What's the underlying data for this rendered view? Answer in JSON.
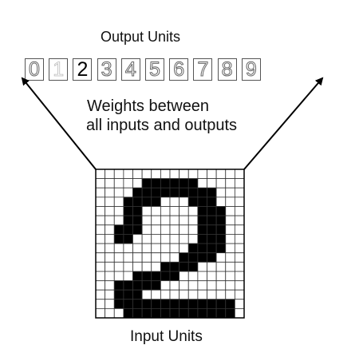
{
  "diagram": {
    "output_title": "Output Units",
    "weights_line1": "Weights between",
    "weights_line2": "all inputs and outputs",
    "input_title": "Input Units",
    "output_units": [
      {
        "label": "0",
        "state": "hollow"
      },
      {
        "label": "1",
        "state": "faint"
      },
      {
        "label": "2",
        "state": "active"
      },
      {
        "label": "3",
        "state": "hollow"
      },
      {
        "label": "4",
        "state": "hollow"
      },
      {
        "label": "5",
        "state": "hollow"
      },
      {
        "label": "6",
        "state": "hollow"
      },
      {
        "label": "7",
        "state": "hollow"
      },
      {
        "label": "8",
        "state": "hollow"
      },
      {
        "label": "9",
        "state": "hollow"
      }
    ],
    "input_grid": {
      "rows": 16,
      "cols": 16,
      "pattern": [
        "0000000000000000",
        "0000011111100000",
        "0000111111111000",
        "0001111000111000",
        "0001100000011100",
        "0001100000011100",
        "0011100000011100",
        "0011000000011100",
        "0000000000111100",
        "0000000001111000",
        "0000000111100000",
        "0000111110000000",
        "0011111000000000",
        "0011100000000000",
        "0011111111111110",
        "0001111111111110"
      ]
    },
    "colors": {
      "line": "#000000",
      "grid": "#333333",
      "on": "#000000",
      "off": "#ffffff"
    }
  }
}
